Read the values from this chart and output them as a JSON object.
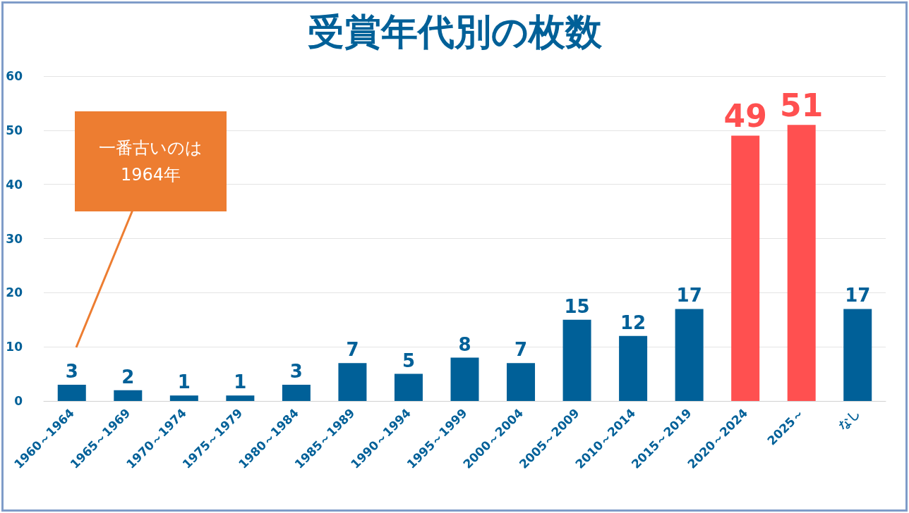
{
  "chart_data": {
    "type": "bar",
    "title": "受賞年代別の枚数",
    "categories": [
      "1960～1964",
      "1965～1969",
      "1970～1974",
      "1975～1979",
      "1980～1984",
      "1985～1989",
      "1990～1994",
      "1995～1999",
      "2000～2004",
      "2005～2009",
      "2010～2014",
      "2015～2019",
      "2020～2024",
      "2025～",
      "なし"
    ],
    "values": [
      3,
      2,
      1,
      1,
      3,
      7,
      5,
      8,
      7,
      15,
      12,
      17,
      49,
      51,
      17
    ],
    "colors": [
      "#006098",
      "#006098",
      "#006098",
      "#006098",
      "#006098",
      "#006098",
      "#006098",
      "#006098",
      "#006098",
      "#006098",
      "#006098",
      "#006098",
      "#ff5050",
      "#ff5050",
      "#006098"
    ],
    "ylim": [
      0,
      60
    ],
    "yticks": [
      0,
      10,
      20,
      30,
      40,
      50,
      60
    ],
    "grid": "y",
    "data_labels": true,
    "annotations": [
      "一番古いのは\n1964年"
    ]
  }
}
